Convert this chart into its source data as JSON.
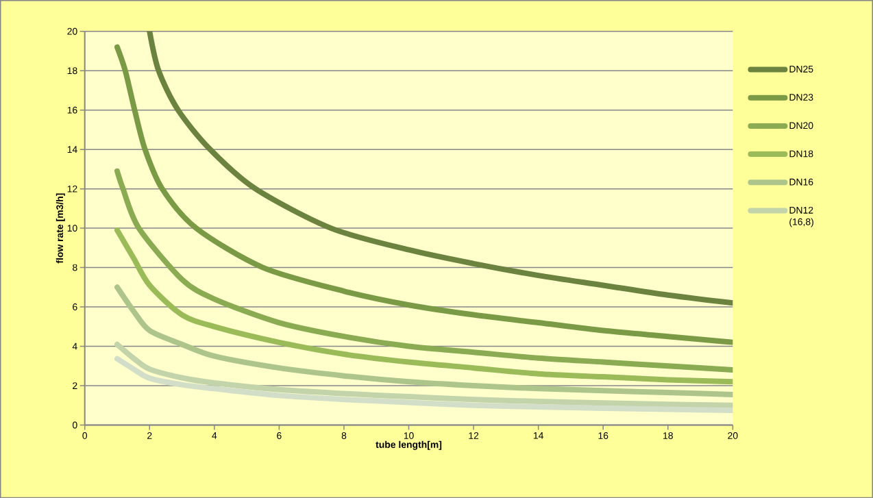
{
  "chart_data": {
    "type": "line",
    "xlabel": "tube length[m]",
    "ylabel": "flow rate [m3/h]",
    "xlim": [
      0,
      20
    ],
    "ylim": [
      0,
      20
    ],
    "xticks": [
      0,
      2,
      4,
      6,
      8,
      10,
      12,
      14,
      16,
      18,
      20
    ],
    "yticks": [
      0,
      2,
      4,
      6,
      8,
      10,
      12,
      14,
      16,
      18,
      20
    ],
    "grid": "y",
    "legend": "right",
    "line_style": "solid",
    "marker": "none",
    "series": [
      {
        "name": "DN25",
        "color": "#6b833e",
        "x": [
          2,
          2.28,
          2.88,
          3.87,
          5.27,
          7.6,
          10,
          12,
          14,
          16,
          18,
          20
        ],
        "values": [
          20,
          18,
          16,
          14,
          12,
          10,
          8.9,
          8.2,
          7.6,
          7.1,
          6.6,
          6.2
        ]
      },
      {
        "name": "DN23",
        "color": "#7b9a45",
        "x": [
          1,
          1.25,
          1.54,
          1.86,
          2.39,
          3.44,
          5.5,
          8,
          10,
          12,
          14,
          16,
          18,
          20
        ],
        "values": [
          19.2,
          18,
          16,
          14,
          12,
          10,
          8,
          6.8,
          6.1,
          5.6,
          5.2,
          4.8,
          4.5,
          4.2
        ]
      },
      {
        "name": "DN20",
        "color": "#8aab52",
        "x": [
          1,
          1.18,
          1.67,
          3,
          4,
          6,
          8,
          10,
          12,
          14,
          16,
          18,
          20
        ],
        "values": [
          12.9,
          12,
          10,
          7.4,
          6.4,
          5.2,
          4.5,
          4.0,
          3.7,
          3.4,
          3.2,
          3.0,
          2.8
        ]
      },
      {
        "name": "DN18",
        "color": "#9bbb59",
        "x": [
          1,
          1.5,
          2,
          3,
          4,
          6,
          8,
          10,
          12,
          14,
          16,
          18,
          20
        ],
        "values": [
          9.9,
          8.5,
          7.1,
          5.6,
          5.0,
          4.2,
          3.6,
          3.2,
          2.9,
          2.6,
          2.45,
          2.3,
          2.2
        ]
      },
      {
        "name": "DN16",
        "color": "#adc58a",
        "x": [
          1,
          1.5,
          2,
          3,
          4,
          6,
          8,
          10,
          12,
          14,
          16,
          18,
          20
        ],
        "values": [
          7.0,
          5.8,
          4.8,
          4.1,
          3.5,
          2.9,
          2.5,
          2.2,
          2.0,
          1.85,
          1.75,
          1.65,
          1.55
        ]
      },
      {
        "name": "DN12 (16,8)",
        "color": "#c3d3aa",
        "x": [
          1,
          1.5,
          2,
          3,
          4,
          6,
          8,
          10,
          12,
          14,
          16,
          18,
          20
        ],
        "values": [
          4.1,
          3.4,
          2.84,
          2.4,
          2.14,
          1.8,
          1.6,
          1.44,
          1.3,
          1.2,
          1.12,
          1.05,
          1.0
        ]
      },
      {
        "color": "#d3dec9",
        "x": [
          1,
          1.5,
          2,
          3,
          4,
          6,
          8,
          10,
          12,
          14,
          16,
          18,
          20
        ],
        "values": [
          3.37,
          2.85,
          2.38,
          2.05,
          1.85,
          1.5,
          1.3,
          1.15,
          1.0,
          0.92,
          0.85,
          0.8,
          0.75
        ]
      }
    ]
  }
}
